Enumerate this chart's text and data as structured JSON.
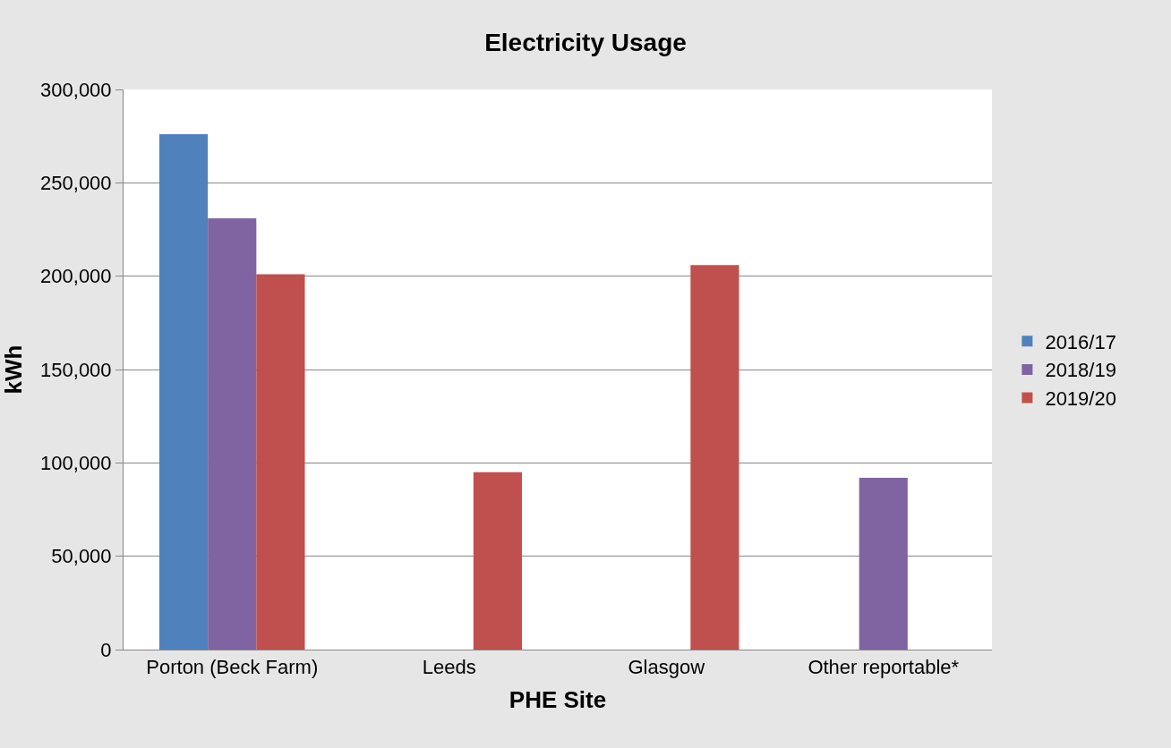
{
  "chart_data": {
    "type": "bar",
    "title": "Electricity Usage",
    "xlabel": "PHE Site",
    "ylabel": "kWh",
    "categories": [
      "Porton (Beck Farm)",
      "Leeds",
      "Glasgow",
      "Other reportable*"
    ],
    "series": [
      {
        "name": "2016/17",
        "color": "#4f81bd",
        "values": [
          276000,
          null,
          null,
          null
        ]
      },
      {
        "name": "2018/19",
        "color": "#8064a2",
        "values": [
          231000,
          null,
          null,
          92000
        ]
      },
      {
        "name": "2019/20",
        "color": "#c0504d",
        "values": [
          201000,
          95000,
          206000,
          null
        ]
      }
    ],
    "ylim": [
      0,
      300000
    ],
    "yticks": [
      {
        "value": 0,
        "label": "0"
      },
      {
        "value": 50000,
        "label": "50,000"
      },
      {
        "value": 100000,
        "label": "100,000"
      },
      {
        "value": 150000,
        "label": "150,000"
      },
      {
        "value": 200000,
        "label": "200,000"
      },
      {
        "value": 250000,
        "label": "250,000"
      },
      {
        "value": 300000,
        "label": "300,000"
      }
    ],
    "grid": "y",
    "legend": "right"
  }
}
